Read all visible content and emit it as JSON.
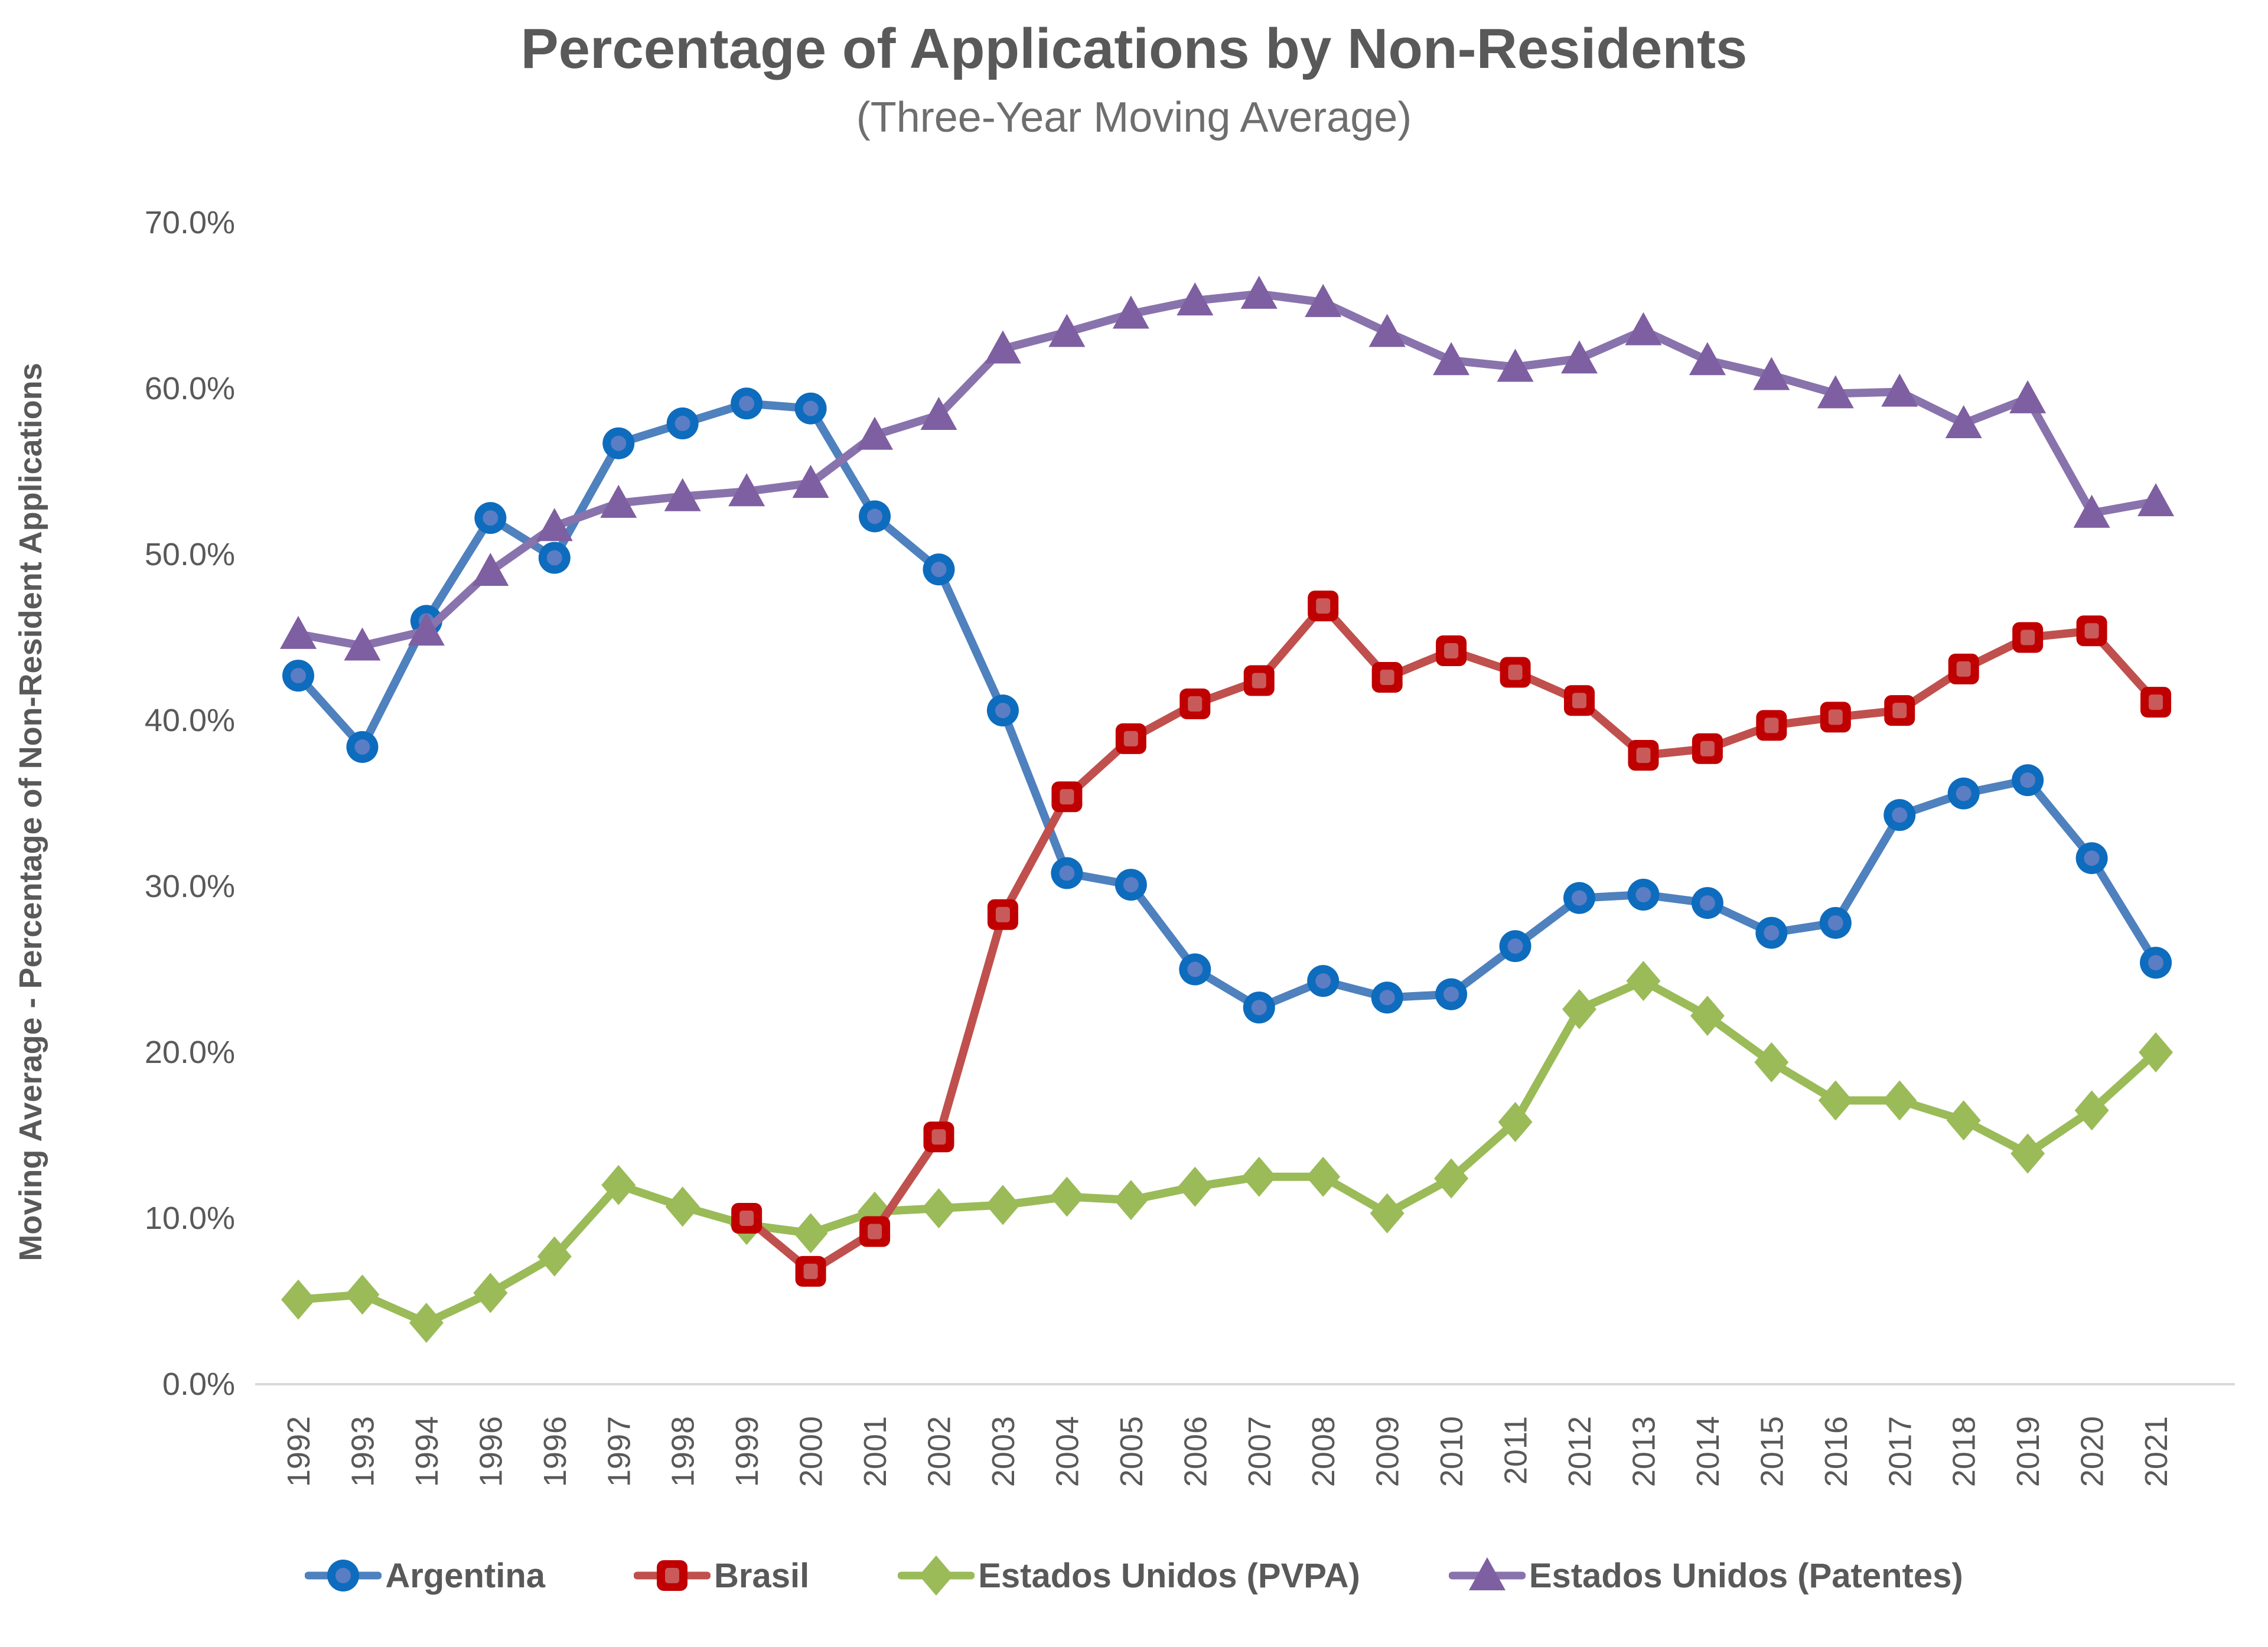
{
  "chart": {
    "title": "Percentage of Applications by Non-Residents",
    "subtitle": "(Three-Year Moving Average)",
    "ylabel": "Moving Average - Percentage of Non-Resident Applications"
  },
  "chart_data": {
    "type": "line",
    "title": "Percentage of Applications by Non-Residents",
    "subtitle": "(Three-Year Moving Average)",
    "xlabel": "",
    "ylabel": "Moving Average - Percentage of Non-Resident Applications",
    "ylim": [
      0,
      70
    ],
    "y_tick_step": 10,
    "y_tick_labels": [
      "0.0%",
      "10.0%",
      "20.0%",
      "30.0%",
      "40.0%",
      "50.0%",
      "60.0%",
      "70.0%"
    ],
    "grid": false,
    "legend_position": "bottom",
    "categories": [
      "1992",
      "1993",
      "1994",
      "1996",
      "1996",
      "1997",
      "1998",
      "1999",
      "2000",
      "2001",
      "2002",
      "2003",
      "2004",
      "2005",
      "2006",
      "2007",
      "2008",
      "2009",
      "2010",
      "2011",
      "2012",
      "2013",
      "2014",
      "2015",
      "2016",
      "2017",
      "2018",
      "2019",
      "2020",
      "2021"
    ],
    "series": [
      {
        "name": "Argentina",
        "marker": "circle",
        "marker_color": "#0d6cbd",
        "marker_inner_color": "#5b7dc4",
        "line_color": "#4e81be",
        "values": [
          42.7,
          38.4,
          46.0,
          52.2,
          49.8,
          56.7,
          57.9,
          59.1,
          58.8,
          52.3,
          49.1,
          40.6,
          30.8,
          30.1,
          25.0,
          22.7,
          24.3,
          23.3,
          23.5,
          26.4,
          29.3,
          29.5,
          29.0,
          27.2,
          27.8,
          34.3,
          35.6,
          36.4,
          31.7,
          25.4
        ]
      },
      {
        "name": "Brasil",
        "marker": "square",
        "marker_color": "#c00000",
        "marker_inner_color": "#c85a5a",
        "line_color": "#c0504d",
        "values": [
          null,
          null,
          null,
          null,
          null,
          null,
          null,
          10.0,
          6.8,
          9.2,
          14.9,
          28.3,
          35.4,
          38.9,
          41.0,
          42.4,
          46.9,
          42.6,
          44.2,
          42.9,
          41.2,
          37.9,
          38.3,
          39.7,
          40.2,
          40.6,
          43.1,
          45.0,
          45.4,
          41.1
        ]
      },
      {
        "name": "Estados Unidos (PVPA)",
        "marker": "diamond",
        "marker_color": "#9abb58",
        "marker_inner_color": "#9abb58",
        "line_color": "#9abb58",
        "values": [
          5.1,
          5.4,
          3.7,
          5.5,
          7.7,
          12.0,
          10.7,
          9.6,
          9.1,
          10.4,
          10.6,
          10.8,
          11.3,
          11.1,
          11.9,
          12.5,
          12.5,
          10.3,
          12.4,
          15.8,
          22.6,
          24.3,
          22.2,
          19.4,
          17.1,
          17.1,
          15.9,
          13.9,
          16.5,
          20.0
        ]
      },
      {
        "name": "Estados Unidos (Patentes)",
        "marker": "triangle",
        "marker_color": "#7e5fa1",
        "marker_inner_color": "#7e5fa1",
        "line_color": "#8973ac",
        "values": [
          45.2,
          44.5,
          45.4,
          49.0,
          51.7,
          53.1,
          53.5,
          53.8,
          54.3,
          57.2,
          58.4,
          62.4,
          63.4,
          64.5,
          65.3,
          65.7,
          65.2,
          63.4,
          61.7,
          61.3,
          61.8,
          63.5,
          61.7,
          60.8,
          59.7,
          59.8,
          57.9,
          59.4,
          52.5,
          53.2
        ]
      }
    ],
    "axis_color": "#d9d9d9",
    "tick_label_color": "#595959"
  }
}
